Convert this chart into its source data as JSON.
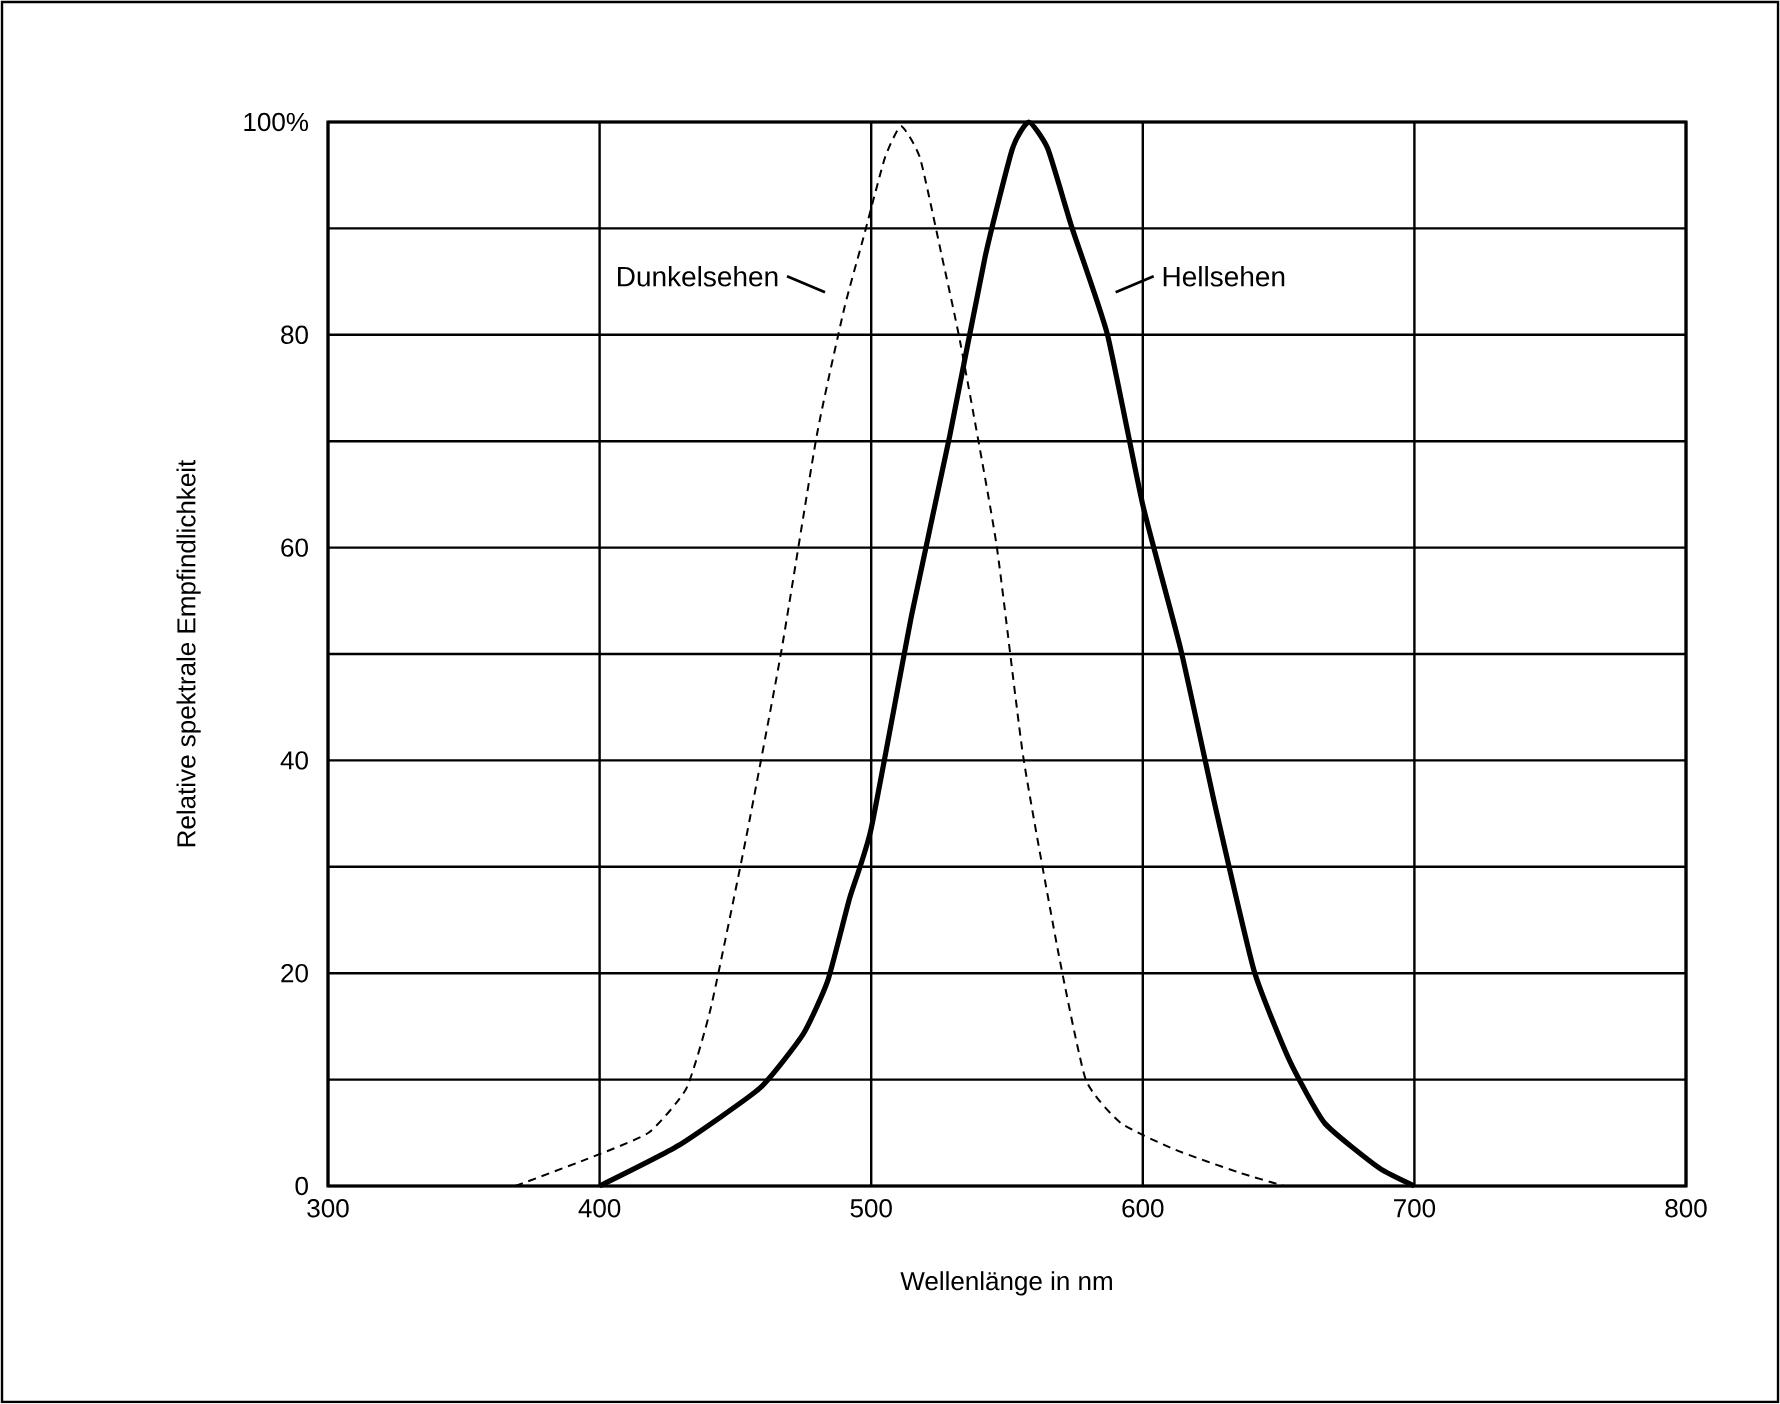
{
  "chart_data": {
    "type": "line",
    "xlabel": "Wellenlänge in nm",
    "ylabel": "Relative spektrale Empfindlichkeit",
    "xlim": [
      300,
      800
    ],
    "xticks": [
      300,
      400,
      500,
      600,
      700,
      800
    ],
    "ylim": [
      0,
      100
    ],
    "yticks": [
      0,
      {
        "value": 10,
        "label": null
      },
      20,
      {
        "value": 30,
        "label": null
      },
      40,
      {
        "value": 50,
        "label": null
      },
      60,
      {
        "value": 70,
        "label": null
      },
      80,
      {
        "value": 90,
        "label": null
      },
      {
        "value": 100,
        "label": "100%"
      }
    ],
    "grid": true,
    "series": [
      {
        "name": "Dunkelsehen",
        "color": "#000000",
        "line_style": "dashed",
        "x": [
          369,
          395,
          418,
          432,
          441,
          454,
          467,
          480,
          490,
          497,
          505,
          511,
          518,
          526,
          533,
          546,
          556,
          569,
          579,
          592,
          612,
          635,
          652
        ],
        "values": [
          0,
          2.5,
          5,
          9.2,
          16.8,
          32.8,
          50.4,
          70.6,
          82.4,
          89,
          96.6,
          99.6,
          96.6,
          87.4,
          79,
          60.5,
          40.3,
          21.8,
          10,
          5.9,
          3.4,
          1.3,
          0
        ]
      },
      {
        "name": "Hellsehen",
        "color": "#000000",
        "line_style": "solid",
        "x": [
          400,
          429,
          459,
          475,
          484,
          492,
          500,
          515,
          529,
          542,
          552,
          558,
          565,
          574,
          587,
          600,
          614,
          627,
          641,
          654,
          667,
          687,
          700
        ],
        "values": [
          0,
          3.8,
          9.2,
          14.3,
          19.3,
          27,
          33.6,
          53.8,
          70.6,
          87.4,
          97.5,
          100,
          97.5,
          90,
          80,
          64,
          50.4,
          35.3,
          20.2,
          11.8,
          5.9,
          1.7,
          0
        ]
      }
    ]
  }
}
